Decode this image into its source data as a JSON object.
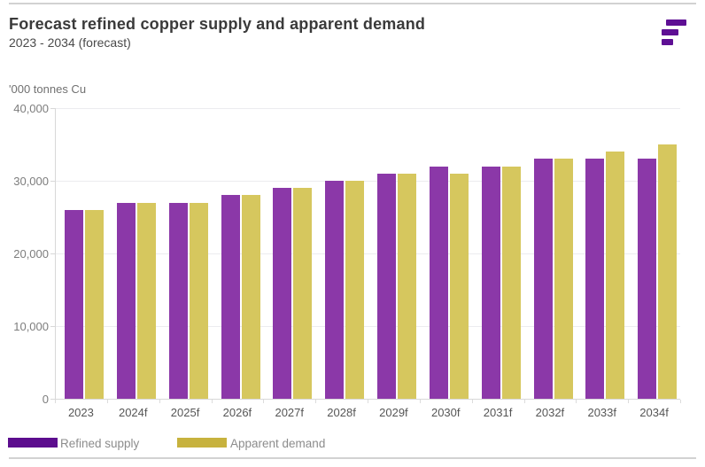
{
  "header": {
    "title": "Forecast refined copper supply and apparent demand",
    "subtitle": "2023 - 2034 (forecast)"
  },
  "y_axis": {
    "unit_label": "'000 tonnes Cu"
  },
  "colors": {
    "brand_purple": "#5e0f94",
    "bar_purple": "#8b38a8",
    "bar_yellow": "#d6c75e",
    "legend_purple": "#5c0d8e",
    "legend_yellow": "#c7b23e"
  },
  "chart_data": {
    "type": "bar",
    "title": "Forecast refined copper supply and apparent demand",
    "subtitle": "2023 - 2034 (forecast)",
    "ylabel": "'000 tonnes Cu",
    "categories": [
      "2023",
      "2024f",
      "2025f",
      "2026f",
      "2027f",
      "2028f",
      "2029f",
      "2030f",
      "2031f",
      "2032f",
      "2033f",
      "2034f"
    ],
    "series": [
      {
        "name": "Refined supply",
        "color": "#8b38a8",
        "legend_color": "#5c0d8e",
        "values": [
          26000,
          27000,
          27000,
          28000,
          29000,
          30000,
          31000,
          32000,
          32000,
          33000,
          33000,
          33000
        ]
      },
      {
        "name": "Apparent demand",
        "color": "#d6c75e",
        "legend_color": "#c7b23e",
        "values": [
          26000,
          27000,
          27000,
          28000,
          29000,
          30000,
          31000,
          31000,
          32000,
          33000,
          34000,
          35000
        ]
      }
    ],
    "ylim": [
      0,
      40000
    ],
    "yticks": [
      0,
      10000,
      20000,
      30000,
      40000
    ],
    "ytick_labels": [
      "0",
      "10,000",
      "20,000",
      "30,000",
      "40,000"
    ],
    "grid": true,
    "legend_position": "bottom-left"
  }
}
